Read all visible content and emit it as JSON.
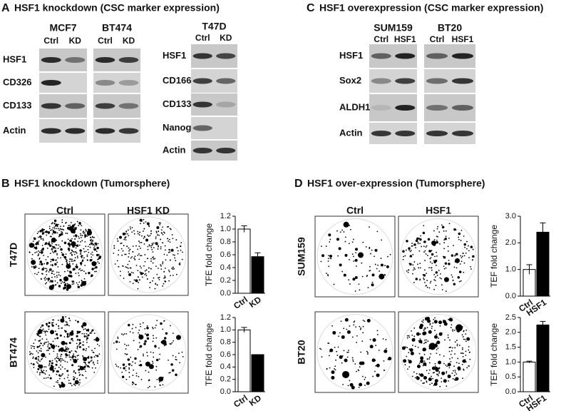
{
  "panel_a": {
    "letter": "A",
    "title": "HSF1 knockdown (CSC marker expression)",
    "left": {
      "groups": [
        {
          "name": "MCF7",
          "lanes": [
            "Ctrl",
            "KD"
          ]
        },
        {
          "name": "BT474",
          "lanes": [
            "Ctrl",
            "KD"
          ]
        }
      ],
      "rows": [
        "HSF1",
        "CD326",
        "CD133",
        "Actin"
      ]
    },
    "right": {
      "groups": [
        {
          "name": "T47D",
          "lanes": [
            "Ctrl",
            "KD"
          ]
        }
      ],
      "rows": [
        "HSF1",
        "CD166",
        "CD133",
        "Nanog",
        "Actin"
      ]
    }
  },
  "panel_c": {
    "letter": "C",
    "title": "HSF1 overexpression (CSC marker expression)",
    "blot": {
      "groups": [
        {
          "name": "SUM159",
          "lanes": [
            "Ctrl",
            "HSF1"
          ]
        },
        {
          "name": "BT20",
          "lanes": [
            "Ctrl",
            "HSF1"
          ]
        }
      ],
      "rows": [
        "HSF1",
        "Sox2",
        "ALDH1",
        "Actin"
      ]
    }
  },
  "panel_b": {
    "letter": "B",
    "title": "HSF1 knockdown (Tumorsphere)",
    "columns": [
      "Ctrl",
      "HSF1 KD"
    ],
    "rows": [
      "T47D",
      "BT474"
    ]
  },
  "panel_d": {
    "letter": "D",
    "title": "HSF1 over-expression (Tumorsphere)",
    "columns": [
      "Ctrl",
      "HSF1"
    ],
    "rows": [
      "SUM159",
      "BT20"
    ]
  },
  "chart_data": [
    {
      "type": "bar",
      "y_label": "TFE fold change",
      "categories": [
        "Ctrl",
        "KD"
      ],
      "values": [
        1.0,
        0.57
      ],
      "errors": [
        0.05,
        0.06
      ],
      "colors": [
        "#ffffff",
        "#000000"
      ],
      "ylim": [
        0,
        1.2
      ],
      "yticks": [
        {
          "value": 0,
          "label": "0.0"
        },
        {
          "value": 0.2,
          "label": "0.2"
        },
        {
          "value": 0.4,
          "label": "0.4"
        },
        {
          "value": 0.6,
          "label": "0.6"
        },
        {
          "value": 0.8,
          "label": "0.8"
        },
        {
          "value": 1.0,
          "label": "1.0"
        },
        {
          "value": 1.2,
          "label": "1.2"
        }
      ]
    },
    {
      "type": "bar",
      "y_label": "TFE fold change",
      "categories": [
        "Ctrl",
        "KD"
      ],
      "values": [
        1.0,
        0.6
      ],
      "errors": [
        0.04,
        0
      ],
      "colors": [
        "#ffffff",
        "#000000"
      ],
      "ylim": [
        0,
        1.2
      ],
      "yticks": [
        {
          "value": 0,
          "label": "0.0"
        },
        {
          "value": 0.2,
          "label": "0.2"
        },
        {
          "value": 0.4,
          "label": "0.4"
        },
        {
          "value": 0.6,
          "label": "0.6"
        },
        {
          "value": 0.8,
          "label": "0.8"
        },
        {
          "value": 1.0,
          "label": "1.0"
        },
        {
          "value": 1.2,
          "label": "1.2"
        }
      ]
    },
    {
      "type": "bar",
      "y_label": "TEF fold change",
      "categories": [
        "Ctrl",
        "HSF1"
      ],
      "values": [
        1.0,
        2.4
      ],
      "errors": [
        0.18,
        0.35
      ],
      "colors": [
        "#ffffff",
        "#000000"
      ],
      "ylim": [
        0,
        3.0
      ],
      "yticks": [
        {
          "value": 0,
          "label": "0.0"
        },
        {
          "value": 1.0,
          "label": "1.0"
        },
        {
          "value": 2.0,
          "label": "2.0"
        },
        {
          "value": 3.0,
          "label": "3.0"
        }
      ]
    },
    {
      "type": "bar",
      "y_label": "TEF fold change",
      "categories": [
        "Ctrl",
        "HSF1"
      ],
      "values": [
        1.0,
        2.25
      ],
      "errors": [
        0.03,
        0.12
      ],
      "colors": [
        "#ffffff",
        "#000000"
      ],
      "ylim": [
        0,
        2.5
      ],
      "yticks": [
        {
          "value": 0,
          "label": "0.0"
        },
        {
          "value": 0.5,
          "label": "0.5"
        },
        {
          "value": 1.0,
          "label": "1.0"
        },
        {
          "value": 1.5,
          "label": "1.5"
        },
        {
          "value": 2.0,
          "label": "2.0"
        },
        {
          "value": 2.5,
          "label": "2.5"
        }
      ]
    }
  ]
}
